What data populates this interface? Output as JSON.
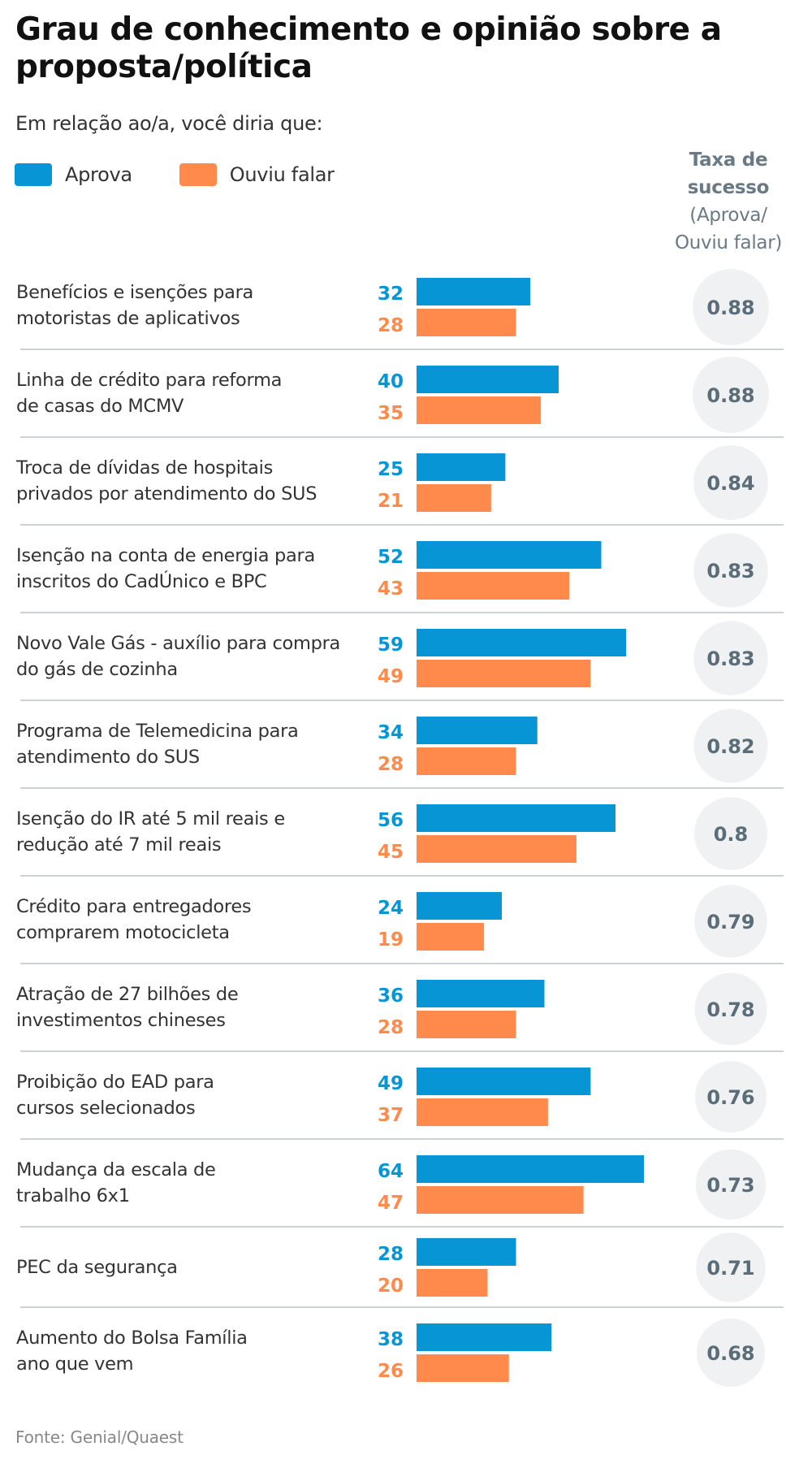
{
  "header": {
    "title": "Grau de conhecimento e opinião sobre a proposta/política",
    "subtitle": "Em relação ao/a, você diria que:"
  },
  "legend": [
    {
      "label": "Aprova",
      "color": "#0795D6"
    },
    {
      "label": "Ouviu falar",
      "color": "#FF8A4C"
    }
  ],
  "rate_header": {
    "line1": "Taxa de",
    "line2": "sucesso",
    "line3": "(Aprova/",
    "line4": "Ouviu falar)"
  },
  "source": "Fonte: Genial/Quaest",
  "colors": {
    "aprova": "#0795D6",
    "ouviu": "#FF8A4C",
    "circle_bg": "#EFF1F3",
    "circle_text": "#5B6D78",
    "divider": "#CDD2D6"
  },
  "chart_data": {
    "type": "bar",
    "orientation": "horizontal",
    "title": "Grau de conhecimento e opinião sobre a proposta/política",
    "subtitle": "Em relação ao/a, você diria que:",
    "xlabel": "",
    "ylabel": "",
    "xlim": [
      0,
      70
    ],
    "grid": false,
    "legend_position": "top-left",
    "categories": [
      "Benefícios e isenções para motoristas de aplicativos",
      "Linha de crédito para reforma de casas do MCMV",
      "Troca de dívidas de hospitais privados por atendimento do SUS",
      "Isenção na conta de energia para inscritos do CadÚnico e BPC",
      "Novo Vale Gás - auxílio para compra do gás de cozinha",
      "Programa de Telemedicina para atendimento do SUS",
      "Isenção do IR até 5 mil reais e redução até 7 mil reais",
      "Crédito para entregadores comprarem motocicleta",
      "Atração de 27 bilhões de investimentos chineses",
      "Proibição do EAD para cursos selecionados",
      "Mudança da escala de trabalho 6x1",
      "PEC da segurança",
      "Aumento do Bolsa Família ano que vem"
    ],
    "label_lines": [
      [
        "Benefícios e isenções para",
        "motoristas de aplicativos"
      ],
      [
        "Linha de crédito para reforma",
        "de casas do MCMV"
      ],
      [
        "Troca de dívidas de hospitais",
        "privados por atendimento do SUS"
      ],
      [
        "Isenção na conta de energia para",
        "inscritos do CadÚnico e BPC"
      ],
      [
        "Novo Vale Gás - auxílio para compra",
        "do gás de cozinha"
      ],
      [
        "Programa de Telemedicina para",
        "atendimento do SUS"
      ],
      [
        "Isenção do IR até 5 mil reais e",
        "redução até 7 mil reais"
      ],
      [
        "Crédito para entregadores",
        "comprarem motocicleta"
      ],
      [
        "Atração de 27 bilhões de",
        "investimentos chineses"
      ],
      [
        "Proibição do EAD para",
        "cursos selecionados"
      ],
      [
        "Mudança da escala de",
        "trabalho 6x1"
      ],
      [
        "PEC da segurança"
      ],
      [
        "Aumento do Bolsa Família",
        "ano que vem"
      ]
    ],
    "series": [
      {
        "name": "Aprova",
        "color": "#0795D6",
        "values": [
          32,
          40,
          25,
          52,
          59,
          34,
          56,
          24,
          36,
          49,
          64,
          28,
          38
        ]
      },
      {
        "name": "Ouviu falar",
        "color": "#FF8A4C",
        "values": [
          28,
          35,
          21,
          43,
          49,
          28,
          45,
          19,
          28,
          37,
          47,
          20,
          26
        ]
      }
    ],
    "success_rate": {
      "name": "Taxa de sucesso (Aprova/Ouviu falar)",
      "values": [
        "0.88",
        "0.88",
        "0.84",
        "0.83",
        "0.83",
        "0.82",
        "0.8",
        "0.79",
        "0.78",
        "0.76",
        "0.73",
        "0.71",
        "0.68"
      ]
    }
  }
}
